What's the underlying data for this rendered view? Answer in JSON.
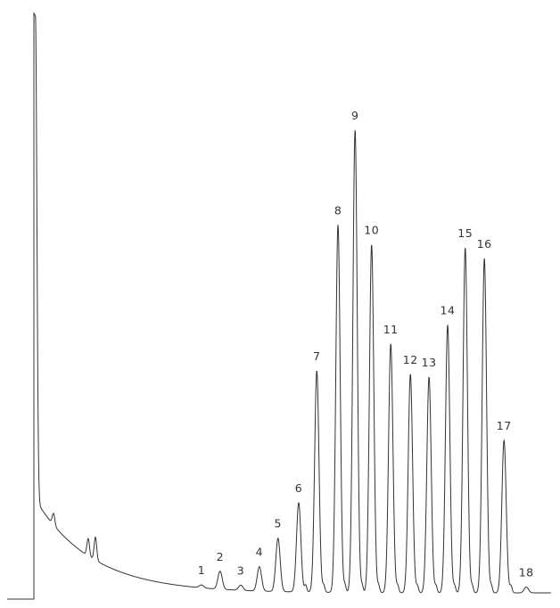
{
  "chart_data": {
    "type": "line",
    "title": "",
    "xlabel": "",
    "ylabel": "",
    "axes_ticks": "none",
    "grid": false,
    "xlim": [
      0,
      100
    ],
    "ylim": [
      0,
      100
    ],
    "line_color": "#333333",
    "baseline_drift": {
      "start_level": 13.8,
      "start_at": 2,
      "decay_constant": 11
    },
    "solvent_peak": {
      "retention": 0.3,
      "height": 100
    },
    "unlabeled_peaks": [
      {
        "retention": 3.8,
        "height": 2.0
      },
      {
        "retention": 10.5,
        "height": 3.0
      },
      {
        "retention": 11.9,
        "height": 4.0
      }
    ],
    "peaks": [
      {
        "label": "1",
        "retention": 32.4,
        "height": 0.5
      },
      {
        "label": "2",
        "retention": 36.0,
        "height": 3.1
      },
      {
        "label": "3",
        "retention": 40.0,
        "height": 0.9
      },
      {
        "label": "4",
        "retention": 43.6,
        "height": 4.2
      },
      {
        "label": "5",
        "retention": 47.2,
        "height": 9.2
      },
      {
        "label": "6",
        "retention": 51.2,
        "height": 15.4
      },
      {
        "label": "7",
        "retention": 54.7,
        "height": 38.2
      },
      {
        "label": "8",
        "retention": 58.8,
        "height": 63.4
      },
      {
        "label": "9",
        "retention": 62.1,
        "height": 79.8
      },
      {
        "label": "10",
        "retention": 65.3,
        "height": 60.0
      },
      {
        "label": "11",
        "retention": 69.0,
        "height": 42.9
      },
      {
        "label": "12",
        "retention": 72.8,
        "height": 37.7
      },
      {
        "label": "13",
        "retention": 76.4,
        "height": 37.2
      },
      {
        "label": "14",
        "retention": 80.0,
        "height": 46.2
      },
      {
        "label": "15",
        "retention": 83.4,
        "height": 59.5
      },
      {
        "label": "16",
        "retention": 87.1,
        "height": 57.7
      },
      {
        "label": "17",
        "retention": 90.9,
        "height": 26.3
      },
      {
        "label": "18",
        "retention": 95.2,
        "height": 1.0
      }
    ]
  }
}
